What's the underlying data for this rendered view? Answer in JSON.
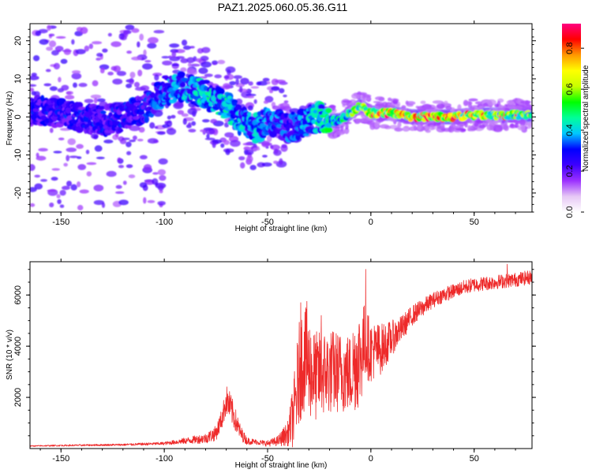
{
  "title": "PAZ1.2025.060.05.36.G11",
  "chart_data": [
    {
      "type": "heatmap",
      "xlabel": "Height of straight line (km)",
      "ylabel": "Frequency (Hz)",
      "xlim": [
        -165,
        78
      ],
      "ylim": [
        -25,
        24.5
      ],
      "x_ticks": [
        -150,
        -100,
        -50,
        0,
        50
      ],
      "y_ticks": [
        -20,
        -10,
        0,
        10,
        20
      ],
      "colorbar": {
        "label": "Normalized spectral amplitude",
        "range": [
          0,
          0.92
        ],
        "ticks": [
          "0.0",
          "0.2",
          "0.4",
          "0.6",
          "0.8"
        ],
        "colors": [
          "#ffffff",
          "#e6c8f5",
          "#9b30ff",
          "#3d00ff",
          "#0000ff",
          "#00c8ff",
          "#00ff99",
          "#00ff00",
          "#c8ff00",
          "#ffff00",
          "#ff9900",
          "#ff0000",
          "#ff0080"
        ]
      },
      "ridge": [
        {
          "x": -165,
          "y": 2,
          "a": 0.3
        },
        {
          "x": -150,
          "y": 1,
          "a": 0.3
        },
        {
          "x": -140,
          "y": 0,
          "a": 0.3
        },
        {
          "x": -130,
          "y": -1,
          "a": 0.3
        },
        {
          "x": -120,
          "y": 0,
          "a": 0.3
        },
        {
          "x": -110,
          "y": 2,
          "a": 0.3
        },
        {
          "x": -100,
          "y": 7,
          "a": 0.35
        },
        {
          "x": -90,
          "y": 8,
          "a": 0.4
        },
        {
          "x": -80,
          "y": 6,
          "a": 0.45
        },
        {
          "x": -75,
          "y": 4,
          "a": 0.45
        },
        {
          "x": -70,
          "y": 3,
          "a": 0.45
        },
        {
          "x": -65,
          "y": 0,
          "a": 0.4
        },
        {
          "x": -60,
          "y": -2,
          "a": 0.4
        },
        {
          "x": -55,
          "y": -3,
          "a": 0.4
        },
        {
          "x": -50,
          "y": -1,
          "a": 0.35
        },
        {
          "x": -45,
          "y": -2,
          "a": 0.35
        },
        {
          "x": -40,
          "y": -3,
          "a": 0.35
        },
        {
          "x": -35,
          "y": -2,
          "a": 0.35
        },
        {
          "x": -30,
          "y": -1,
          "a": 0.4
        },
        {
          "x": -25,
          "y": 0,
          "a": 0.45
        },
        {
          "x": -20,
          "y": -1,
          "a": 0.5
        },
        {
          "x": -15,
          "y": -1,
          "a": 0.5
        },
        {
          "x": -10,
          "y": 1,
          "a": 0.55
        },
        {
          "x": -5,
          "y": 3,
          "a": 0.6
        },
        {
          "x": 0,
          "y": 1,
          "a": 0.7
        },
        {
          "x": 10,
          "y": 1,
          "a": 0.75
        },
        {
          "x": 20,
          "y": 0,
          "a": 0.8
        },
        {
          "x": 30,
          "y": 0,
          "a": 0.85
        },
        {
          "x": 40,
          "y": 0,
          "a": 0.8
        },
        {
          "x": 50,
          "y": 0.5,
          "a": 0.7
        },
        {
          "x": 60,
          "y": 0.5,
          "a": 0.65
        },
        {
          "x": 70,
          "y": 0.5,
          "a": 0.6
        },
        {
          "x": 78,
          "y": 0.5,
          "a": 0.6
        }
      ]
    },
    {
      "type": "line",
      "xlabel": "Height of straight line (km)",
      "ylabel": "SNR (10 * v/v)",
      "xlim": [
        -165,
        78
      ],
      "ylim": [
        0,
        7300
      ],
      "x_ticks": [
        -150,
        -100,
        -50,
        0,
        50
      ],
      "y_ticks": [
        2000,
        4000,
        6000
      ],
      "color": "#ee2a2a",
      "x": [
        -165,
        -150,
        -120,
        -100,
        -90,
        -80,
        -75,
        -72,
        -70,
        -68,
        -66,
        -63,
        -60,
        -55,
        -50,
        -45,
        -40,
        -37,
        -35,
        -33,
        -30,
        -27,
        -25,
        -20,
        -15,
        -10,
        -8,
        -5,
        -3,
        0,
        5,
        10,
        15,
        20,
        25,
        30,
        35,
        40,
        45,
        50,
        55,
        60,
        65,
        70,
        78
      ],
      "y": [
        100,
        120,
        150,
        200,
        300,
        400,
        600,
        1200,
        1900,
        1600,
        1200,
        600,
        300,
        250,
        200,
        300,
        600,
        1500,
        2800,
        3600,
        3200,
        2800,
        2900,
        3000,
        3000,
        2900,
        3300,
        3600,
        4200,
        3800,
        3900,
        4300,
        4700,
        5200,
        5500,
        5800,
        6000,
        6150,
        6300,
        6400,
        6450,
        6500,
        6550,
        6600,
        6700
      ],
      "max_spread": [
        20,
        30,
        40,
        60,
        120,
        200,
        300,
        400,
        600,
        600,
        500,
        300,
        150,
        100,
        120,
        200,
        500,
        1500,
        2000,
        2200,
        2000,
        1800,
        1700,
        1700,
        1600,
        1600,
        1900,
        2000,
        1500,
        1200,
        1000,
        700,
        500,
        400,
        350,
        300,
        300,
        280,
        280,
        280,
        280,
        280,
        280,
        280,
        280
      ],
      "spikes": [
        {
          "x": -34,
          "y": 5700
        },
        {
          "x": -31,
          "y": 5750
        },
        {
          "x": -24,
          "y": 5200
        },
        {
          "x": -2.5,
          "y": 7000
        },
        {
          "x": 66,
          "y": 7200
        }
      ]
    }
  ]
}
